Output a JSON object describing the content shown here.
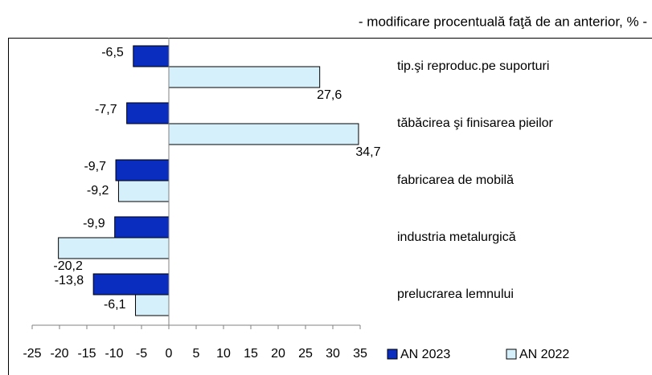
{
  "chart_data": {
    "type": "bar",
    "orientation": "horizontal",
    "subtitle": "- modificare procentuală faţă de an anterior, % -",
    "categories": [
      "tip.şi reproduc.pe suporturi",
      "tăbăcirea şi finisarea pieilor",
      "fabricarea de mobilă",
      "industria metalurgică",
      "prelucrarea lemnului"
    ],
    "series": [
      {
        "name": "AN 2023",
        "color": "#0a2dbf",
        "values": [
          -6.5,
          -7.7,
          -9.7,
          -9.9,
          -13.8
        ],
        "value_labels": [
          "-6,5",
          "-7,7",
          "-9,7",
          "-9,9",
          "-13,8"
        ]
      },
      {
        "name": "AN 2022",
        "color": "#d5effb",
        "values": [
          27.6,
          34.7,
          -9.2,
          -20.2,
          -6.1
        ],
        "value_labels": [
          "27,6",
          "34,7",
          "-9,2",
          "-20,2",
          "-6,1"
        ]
      }
    ],
    "xlim": [
      -25,
      35
    ],
    "xticks": [
      -25,
      -20,
      -15,
      -10,
      -5,
      0,
      5,
      10,
      15,
      20,
      25,
      30,
      35
    ]
  }
}
